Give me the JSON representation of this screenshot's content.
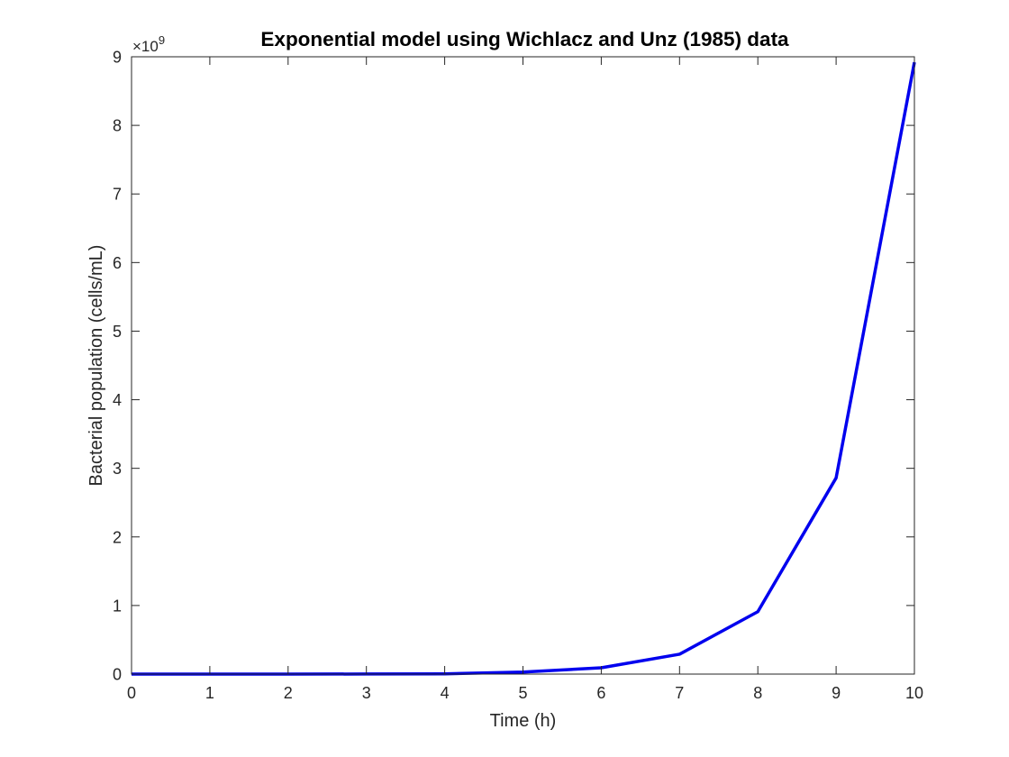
{
  "chart_data": {
    "type": "line",
    "title": "Exponential model using Wichlacz and Unz (1985) data",
    "xlabel": "Time (h)",
    "ylabel": "Bacterial population (cells/mL)",
    "xlim": [
      0,
      10
    ],
    "ylim": [
      0,
      9
    ],
    "x_ticks": [
      0,
      1,
      2,
      3,
      4,
      5,
      6,
      7,
      8,
      9,
      10
    ],
    "y_ticks": [
      0,
      1,
      2,
      3,
      4,
      5,
      6,
      7,
      8,
      9
    ],
    "y_exponent": {
      "base": "×10",
      "power": "9"
    },
    "grid": false,
    "series": [
      {
        "color": "#0000ee",
        "x": [
          0,
          1,
          2,
          3,
          4,
          5,
          6,
          7,
          8,
          9,
          10
        ],
        "y": [
          4e-05,
          0.0001,
          0.0003,
          0.001,
          0.003,
          0.0295,
          0.092,
          0.29,
          0.91,
          2.86,
          8.92
        ]
      }
    ]
  }
}
